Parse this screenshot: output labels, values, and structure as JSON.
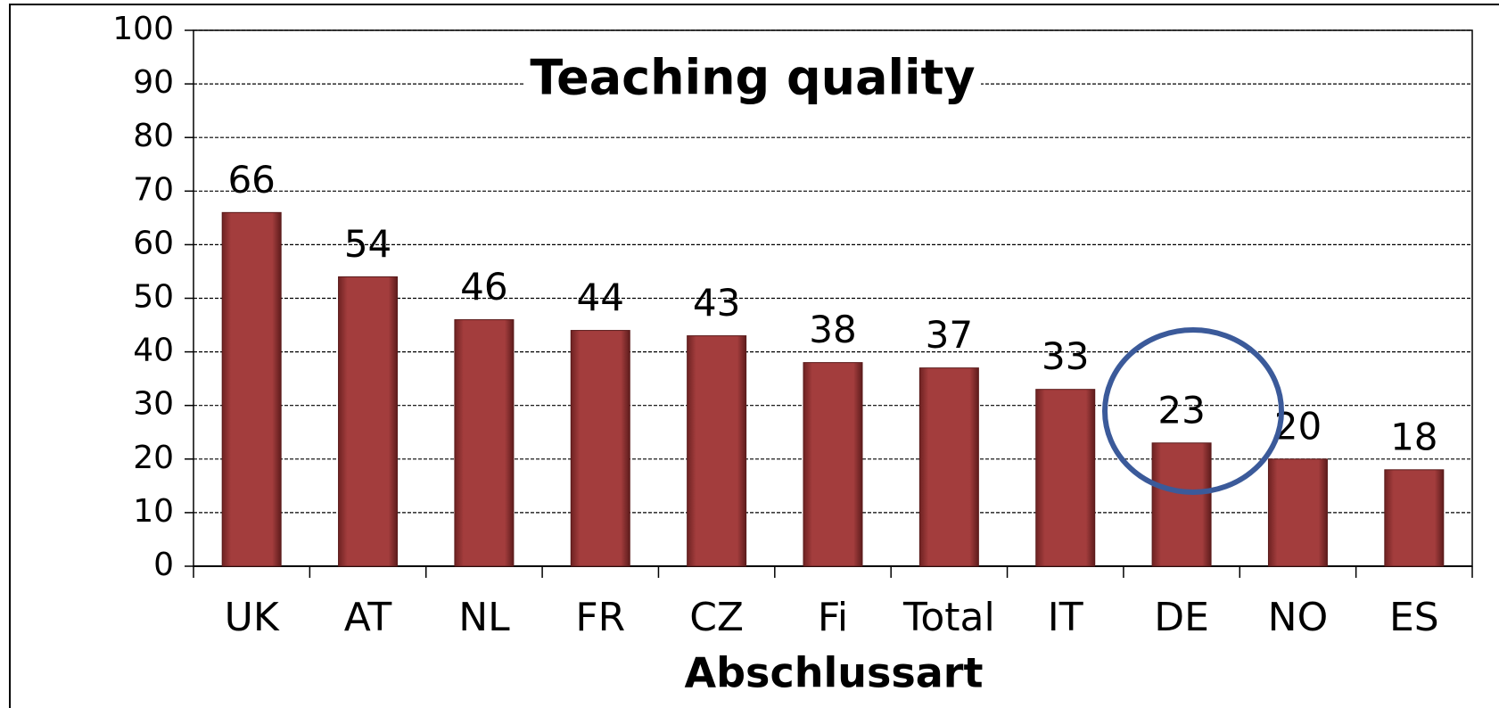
{
  "chart_data": {
    "type": "bar",
    "title": "Teaching quality",
    "x_label": "Abschlussart",
    "categories": [
      "UK",
      "AT",
      "NL",
      "FR",
      "CZ",
      "Fi",
      "Total",
      "IT",
      "DE",
      "NO",
      "ES"
    ],
    "values": [
      66,
      54,
      46,
      44,
      43,
      38,
      37,
      33,
      23,
      20,
      18
    ],
    "color": "#9e3a3a",
    "ylim": [
      0,
      100
    ],
    "yticks": [
      0,
      10,
      20,
      30,
      40,
      50,
      60,
      70,
      80,
      90,
      100
    ],
    "grid": true
  }
}
